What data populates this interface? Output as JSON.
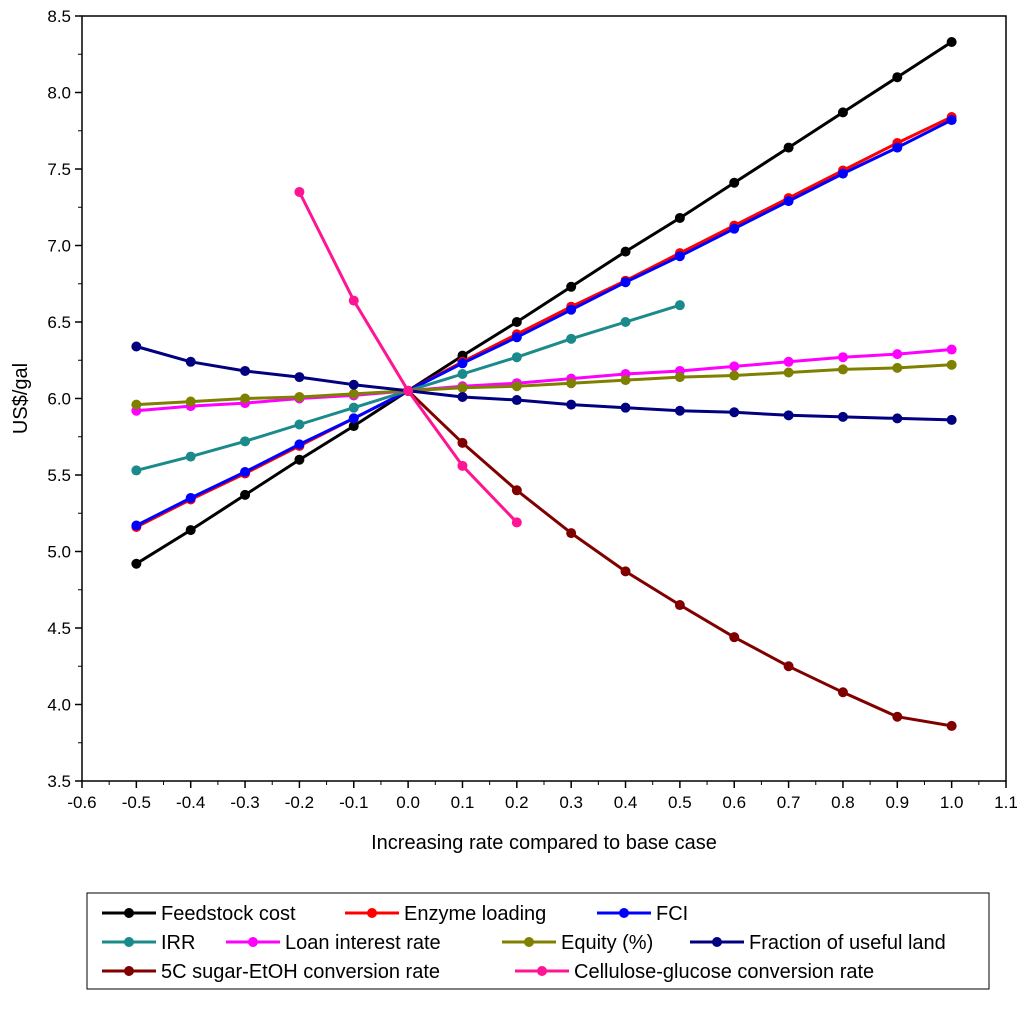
{
  "chart_data": {
    "type": "line",
    "title": "",
    "xlabel": "Increasing rate compared to base case",
    "ylabel": "US$/gal",
    "xlim": [
      -0.6,
      1.1
    ],
    "ylim": [
      3.5,
      8.5
    ],
    "x_ticks": [
      -0.6,
      -0.5,
      -0.4,
      -0.3,
      -0.2,
      -0.1,
      0.0,
      0.1,
      0.2,
      0.3,
      0.4,
      0.5,
      0.6,
      0.7,
      0.8,
      0.9,
      1.0,
      1.1
    ],
    "x_tick_labels": [
      "-0.6",
      "-0.5",
      "-0.4",
      "-0.3",
      "-0.2",
      "-0.1",
      "0.0",
      "0.1",
      "0.2",
      "0.3",
      "0.4",
      "0.5",
      "0.6",
      "0.7",
      "0.8",
      "0.9",
      "1.0",
      "1.1"
    ],
    "y_ticks": [
      3.5,
      4.0,
      4.5,
      5.0,
      5.5,
      6.0,
      6.5,
      7.0,
      7.5,
      8.0,
      8.5
    ],
    "y_tick_labels": [
      "3.5",
      "4.0",
      "4.5",
      "5.0",
      "5.5",
      "6.0",
      "6.5",
      "7.0",
      "7.5",
      "8.0",
      "8.5"
    ],
    "grid": false,
    "legend_position": "bottom",
    "series": [
      {
        "name": "Feedstock cost",
        "color": "#000000",
        "x": [
          -0.5,
          -0.4,
          -0.3,
          -0.2,
          -0.1,
          0.0,
          0.1,
          0.2,
          0.3,
          0.4,
          0.5,
          0.6,
          0.7,
          0.8,
          0.9,
          1.0
        ],
        "y": [
          4.92,
          5.14,
          5.37,
          5.6,
          5.82,
          6.05,
          6.28,
          6.5,
          6.73,
          6.96,
          7.18,
          7.41,
          7.64,
          7.87,
          8.1,
          8.33
        ]
      },
      {
        "name": "Enzyme loading",
        "color": "#ff0000",
        "x": [
          -0.5,
          -0.4,
          -0.3,
          -0.2,
          -0.1,
          0.0,
          0.1,
          0.2,
          0.3,
          0.4,
          0.5,
          0.6,
          0.7,
          0.8,
          0.9,
          1.0
        ],
        "y": [
          5.16,
          5.34,
          5.51,
          5.69,
          5.87,
          6.05,
          6.24,
          6.42,
          6.6,
          6.77,
          6.95,
          7.13,
          7.31,
          7.49,
          7.67,
          7.84
        ]
      },
      {
        "name": "FCI",
        "color": "#0000ff",
        "x": [
          -0.5,
          -0.4,
          -0.3,
          -0.2,
          -0.1,
          0.0,
          0.1,
          0.2,
          0.3,
          0.4,
          0.5,
          0.6,
          0.7,
          0.8,
          0.9,
          1.0
        ],
        "y": [
          5.17,
          5.35,
          5.52,
          5.7,
          5.87,
          6.05,
          6.23,
          6.4,
          6.58,
          6.76,
          6.93,
          7.11,
          7.29,
          7.47,
          7.64,
          7.82
        ]
      },
      {
        "name": "IRR",
        "color": "#1b8a8a",
        "x": [
          -0.5,
          -0.4,
          -0.3,
          -0.2,
          -0.1,
          0.0,
          0.1,
          0.2,
          0.3,
          0.4,
          0.5
        ],
        "y": [
          5.53,
          5.62,
          5.72,
          5.83,
          5.94,
          6.05,
          6.16,
          6.27,
          6.39,
          6.5,
          6.61
        ]
      },
      {
        "name": "Loan interest rate",
        "color": "#ff00ff",
        "x": [
          -0.5,
          -0.4,
          -0.3,
          -0.2,
          -0.1,
          0.0,
          0.1,
          0.2,
          0.3,
          0.4,
          0.5,
          0.6,
          0.7,
          0.8,
          0.9,
          1.0
        ],
        "y": [
          5.92,
          5.95,
          5.97,
          6.0,
          6.02,
          6.05,
          6.08,
          6.1,
          6.13,
          6.16,
          6.18,
          6.21,
          6.24,
          6.27,
          6.29,
          6.32
        ]
      },
      {
        "name": "Equity (%)",
        "color": "#808000",
        "x": [
          -0.5,
          -0.4,
          -0.3,
          -0.2,
          -0.1,
          0.0,
          0.1,
          0.2,
          0.3,
          0.4,
          0.5,
          0.6,
          0.7,
          0.8,
          0.9,
          1.0
        ],
        "y": [
          5.96,
          5.98,
          6.0,
          6.01,
          6.03,
          6.05,
          6.07,
          6.08,
          6.1,
          6.12,
          6.14,
          6.15,
          6.17,
          6.19,
          6.2,
          6.22
        ]
      },
      {
        "name": "Fraction of useful land",
        "color": "#000080",
        "x": [
          -0.5,
          -0.4,
          -0.3,
          -0.2,
          -0.1,
          0.0,
          0.1,
          0.2,
          0.3,
          0.4,
          0.5,
          0.6,
          0.7,
          0.8,
          0.9,
          1.0
        ],
        "y": [
          6.34,
          6.24,
          6.18,
          6.14,
          6.09,
          6.05,
          6.01,
          5.99,
          5.96,
          5.94,
          5.92,
          5.91,
          5.89,
          5.88,
          5.87,
          5.86
        ]
      },
      {
        "name": "5C sugar-EtOH conversion rate",
        "color": "#800000",
        "x": [
          0.0,
          0.1,
          0.2,
          0.3,
          0.4,
          0.5,
          0.6,
          0.7,
          0.8,
          0.9,
          1.0
        ],
        "y": [
          6.05,
          5.71,
          5.4,
          5.12,
          4.87,
          4.65,
          4.44,
          4.25,
          4.08,
          3.92,
          3.86
        ]
      },
      {
        "name": "Cellulose-glucose conversion rate",
        "color": "#ff1493",
        "x": [
          -0.2,
          -0.1,
          0.0,
          0.1,
          0.2
        ],
        "y": [
          7.35,
          6.64,
          6.05,
          5.56,
          5.19
        ]
      }
    ]
  }
}
